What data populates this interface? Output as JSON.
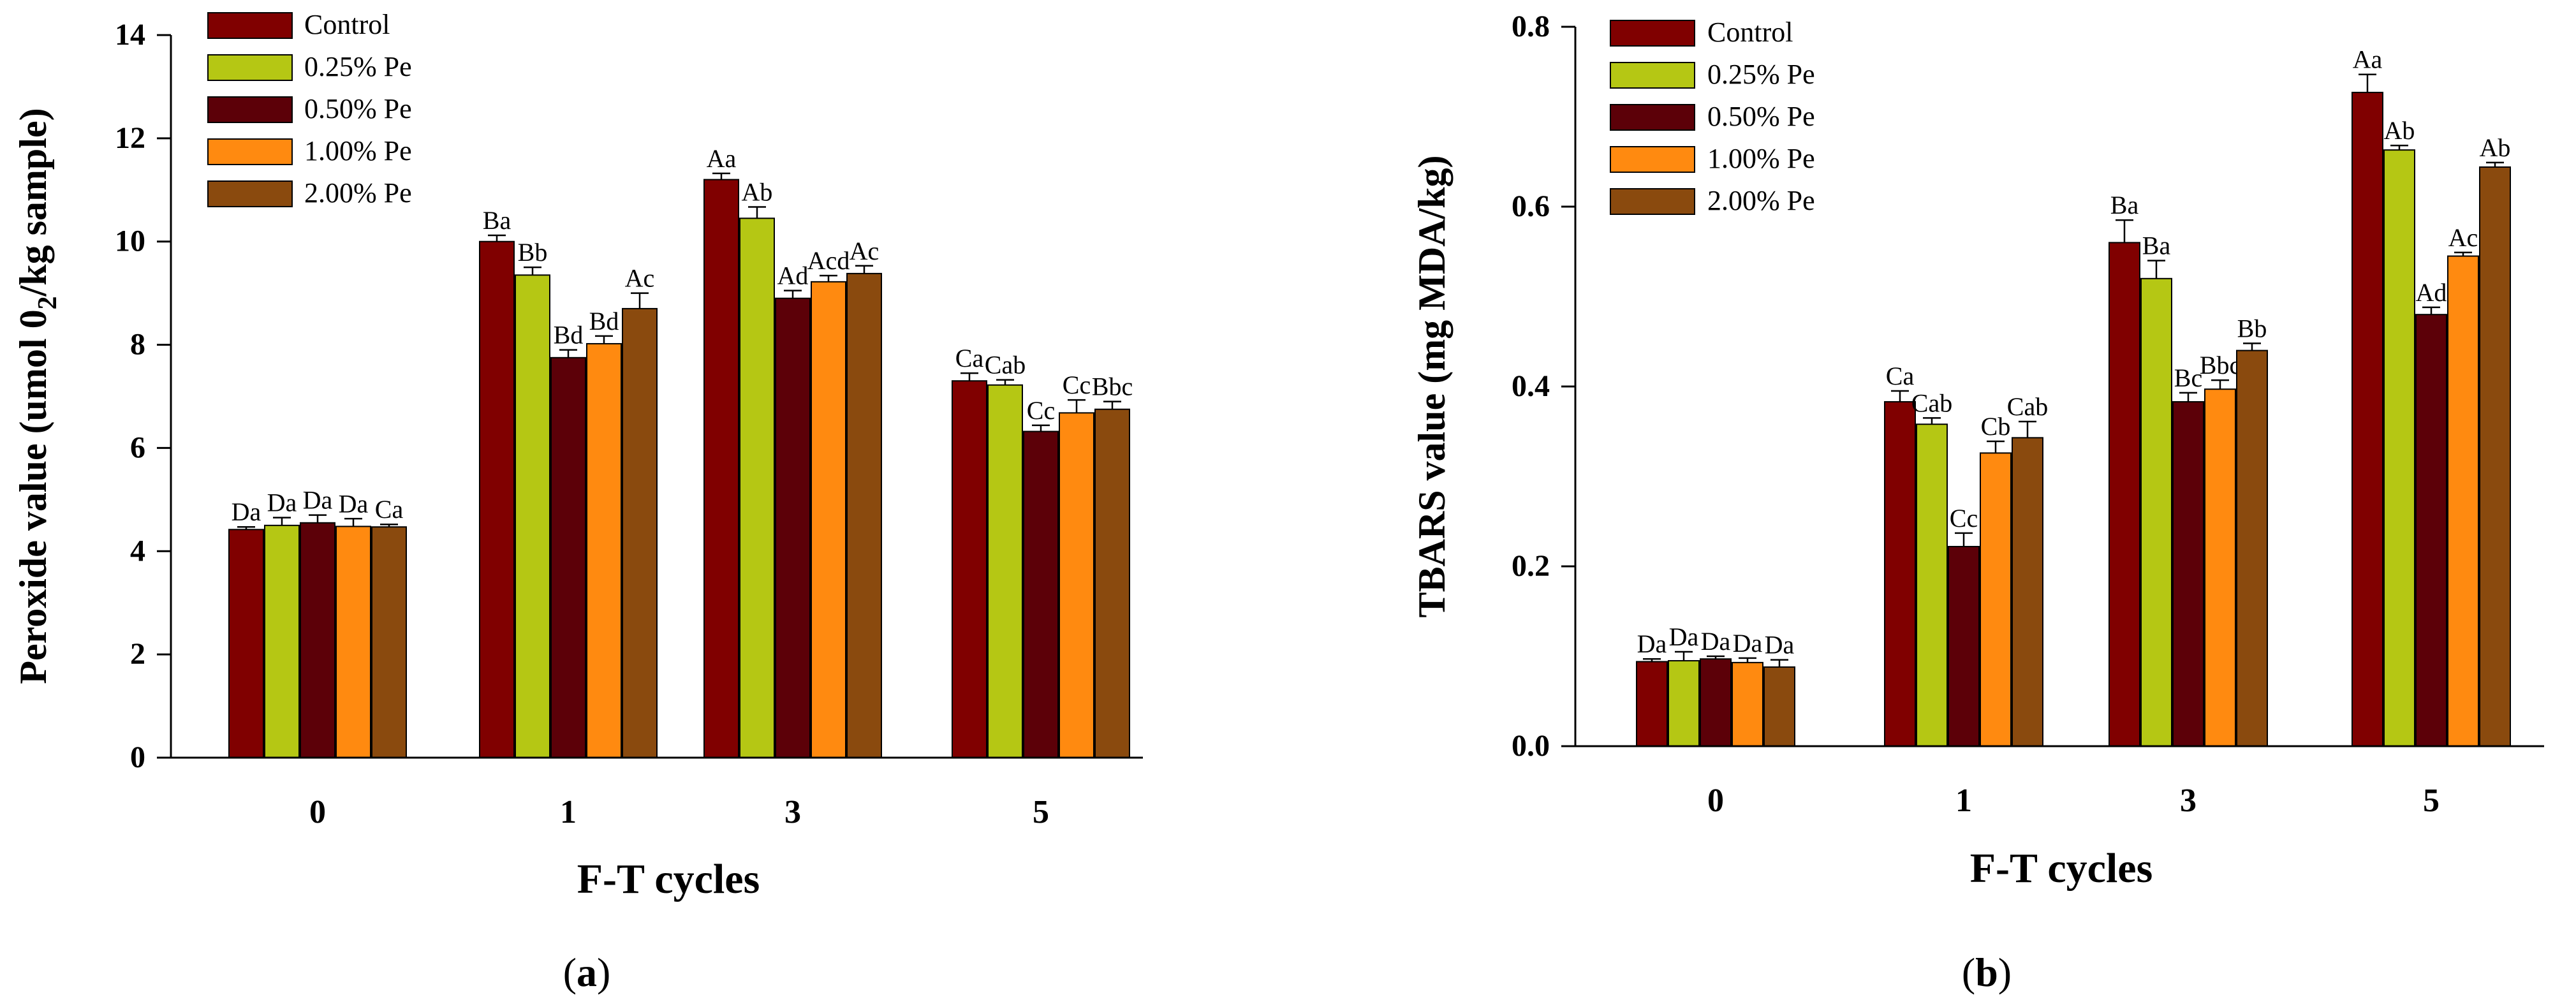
{
  "colors": {
    "control": "#800000",
    "pe025": "#B5C714",
    "pe050": "#5C0008",
    "pe100": "#FF8A10",
    "pe200": "#8A4A0E",
    "axis": "#000000"
  },
  "chart_data": [
    {
      "type": "bar",
      "panel_label": "a",
      "title": "",
      "xlabel": "F-T cycles",
      "ylabel_main": "Peroxide value (umol 0",
      "ylabel_sub": "2",
      "ylabel_tail": "/kg sample)",
      "ylim": [
        0,
        14
      ],
      "yticks": [
        "0",
        "2",
        "4",
        "6",
        "8",
        "10",
        "12",
        "14"
      ],
      "categories": [
        "0",
        "1",
        "3",
        "5"
      ],
      "legend_position": "top-left",
      "series": [
        {
          "name": "Control",
          "color_key": "control",
          "values": [
            4.42,
            10.0,
            11.2,
            7.3
          ],
          "errors": [
            0.05,
            0.12,
            0.12,
            0.15
          ],
          "labels": [
            "Da",
            "Ba",
            "Aa",
            "Ca"
          ]
        },
        {
          "name": "0.25% Pe",
          "color_key": "pe025",
          "values": [
            4.5,
            9.35,
            10.45,
            7.22
          ],
          "errors": [
            0.15,
            0.15,
            0.22,
            0.1
          ],
          "labels": [
            "Da",
            "Bb",
            "Ab",
            "Cab"
          ]
        },
        {
          "name": "0.50% Pe",
          "color_key": "pe050",
          "values": [
            4.55,
            7.75,
            8.9,
            6.32
          ],
          "errors": [
            0.15,
            0.15,
            0.15,
            0.12
          ],
          "labels": [
            "Da",
            "Bd",
            "Ad",
            "Cc"
          ]
        },
        {
          "name": "1.00% Pe",
          "color_key": "pe100",
          "values": [
            4.48,
            8.02,
            9.22,
            6.68
          ],
          "errors": [
            0.15,
            0.15,
            0.12,
            0.25
          ],
          "labels": [
            "Da",
            "Bd",
            "Acd",
            "Cc"
          ]
        },
        {
          "name": "2.00% Pe",
          "color_key": "pe200",
          "values": [
            4.47,
            8.7,
            9.38,
            6.75
          ],
          "errors": [
            0.05,
            0.3,
            0.15,
            0.15
          ],
          "labels": [
            "Ca",
            "Ac",
            "Ac",
            "Bbc"
          ]
        }
      ]
    },
    {
      "type": "bar",
      "panel_label": "b",
      "title": "",
      "xlabel": "F-T cycles",
      "ylabel_main": "TBARS value (mg MDA/kg)",
      "ylabel_sub": "",
      "ylabel_tail": "",
      "ylim": [
        0,
        0.8
      ],
      "yticks": [
        "0.0",
        "0.2",
        "0.4",
        "0.6",
        "0.8"
      ],
      "categories": [
        "0",
        "1",
        "3",
        "5"
      ],
      "legend_position": "top-left",
      "series": [
        {
          "name": "Control",
          "color_key": "control",
          "values": [
            0.094,
            0.383,
            0.56,
            0.727
          ],
          "errors": [
            0.003,
            0.012,
            0.025,
            0.02
          ],
          "labels": [
            "Da",
            "Ca",
            "Ba",
            "Aa"
          ]
        },
        {
          "name": "0.25% Pe",
          "color_key": "pe025",
          "values": [
            0.095,
            0.358,
            0.52,
            0.663
          ],
          "errors": [
            0.01,
            0.007,
            0.02,
            0.005
          ],
          "labels": [
            "Da",
            "Cab",
            "Ba",
            "Ab"
          ]
        },
        {
          "name": "0.50% Pe",
          "color_key": "pe050",
          "values": [
            0.097,
            0.222,
            0.383,
            0.48
          ],
          "errors": [
            0.003,
            0.015,
            0.01,
            0.008
          ],
          "labels": [
            "Da",
            "Cc",
            "Bc",
            "Ad"
          ]
        },
        {
          "name": "1.00% Pe",
          "color_key": "pe100",
          "values": [
            0.093,
            0.326,
            0.397,
            0.545
          ],
          "errors": [
            0.005,
            0.013,
            0.01,
            0.004
          ],
          "labels": [
            "Da",
            "Cb",
            "Bbc",
            "Ac"
          ]
        },
        {
          "name": "2.00% Pe",
          "color_key": "pe200",
          "values": [
            0.088,
            0.343,
            0.44,
            0.644
          ],
          "errors": [
            0.008,
            0.018,
            0.008,
            0.005
          ],
          "labels": [
            "Da",
            "Cab",
            "Bb",
            "Ab"
          ]
        }
      ]
    }
  ]
}
